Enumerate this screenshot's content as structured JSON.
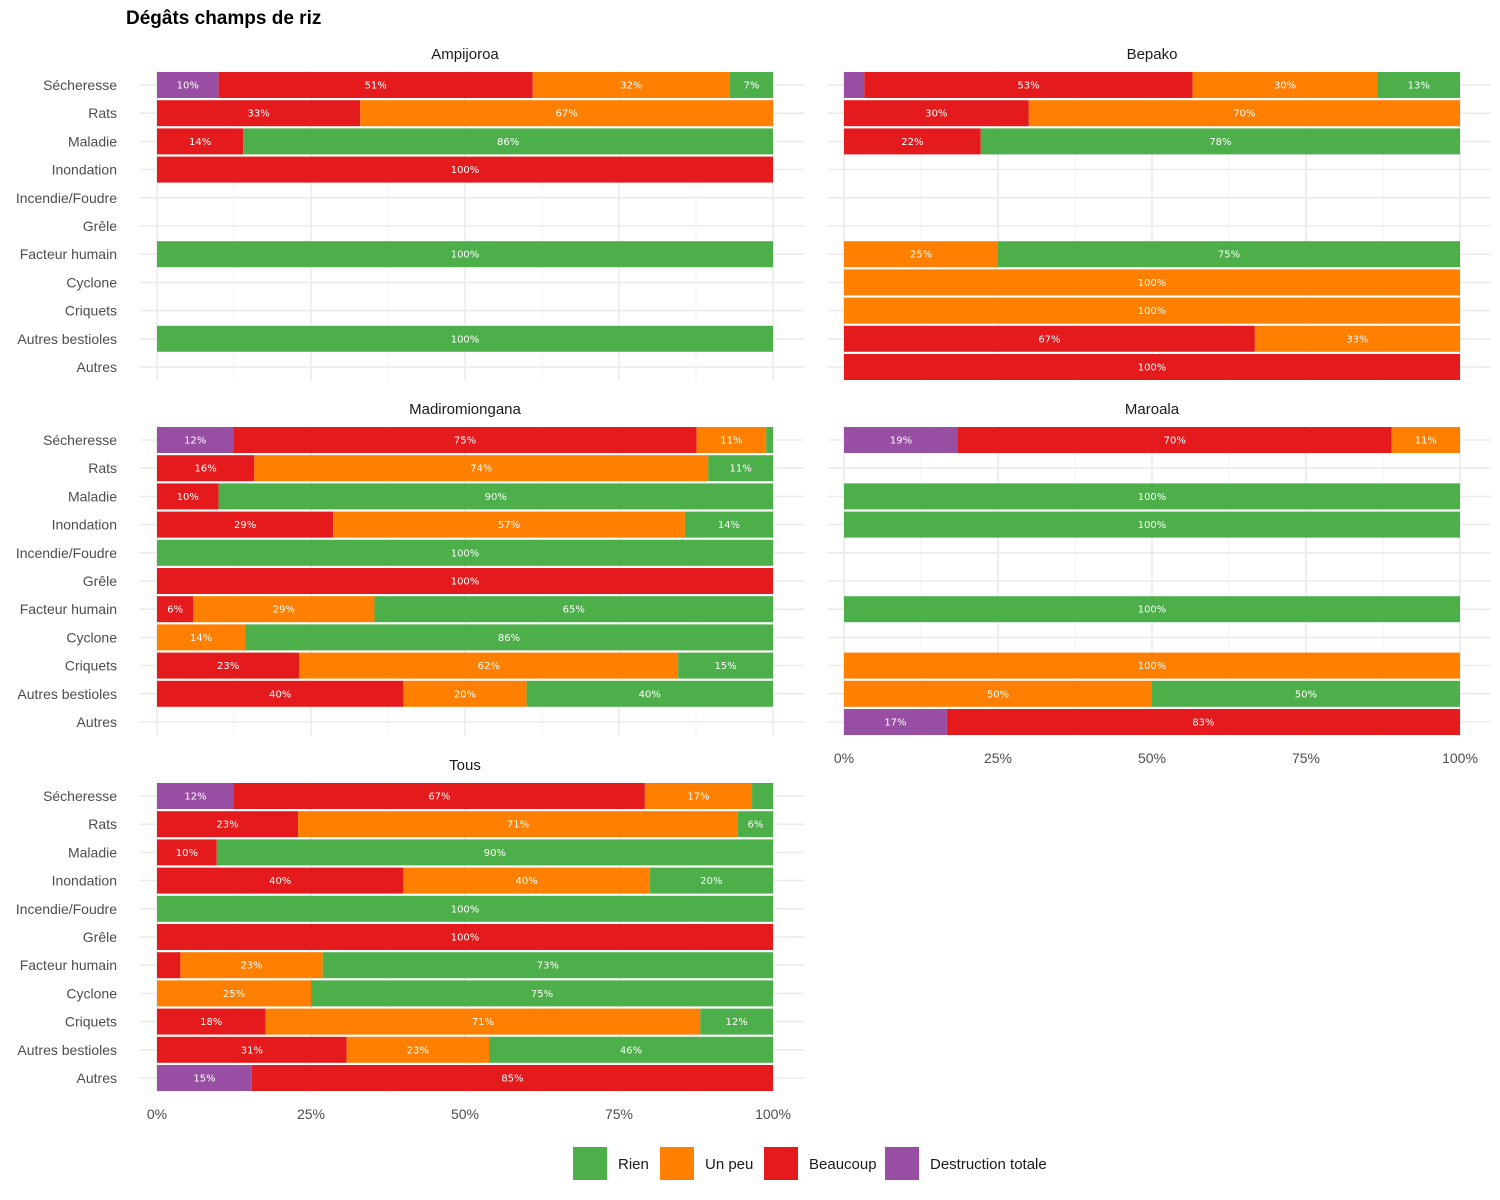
{
  "chart_data": {
    "type": "bar",
    "orientation": "horizontal-stacked-percent",
    "title": "Dégâts champs de riz",
    "xlabel": "",
    "ylabel": "",
    "xlim": [
      0,
      100
    ],
    "x_ticks": [
      "0%",
      "25%",
      "50%",
      "75%",
      "100%"
    ],
    "categories": [
      "Sécheresse",
      "Rats",
      "Maladie",
      "Inondation",
      "Incendie/Foudre",
      "Grêle",
      "Facteur humain",
      "Cyclone",
      "Criquets",
      "Autres bestioles",
      "Autres"
    ],
    "stack_order": [
      "Destruction totale",
      "Beaucoup",
      "Un peu",
      "Rien"
    ],
    "legend": [
      {
        "name": "Rien",
        "color": "#4DAF4A"
      },
      {
        "name": "Un peu",
        "color": "#FF7F00"
      },
      {
        "name": "Beaucoup",
        "color": "#E41A1C"
      },
      {
        "name": "Destruction totale",
        "color": "#984EA3"
      }
    ],
    "legend_position": "bottom",
    "panels": [
      {
        "name": "Ampijoroa",
        "bars": [
          {
            "category": "Sécheresse",
            "values": {
              "Destruction totale": 10,
              "Beaucoup": 51,
              "Un peu": 32,
              "Rien": 7
            },
            "labels": {
              "Destruction totale": "10%",
              "Beaucoup": "51%",
              "Un peu": "32%",
              "Rien": "7%"
            }
          },
          {
            "category": "Rats",
            "values": {
              "Beaucoup": 33,
              "Un peu": 67
            },
            "labels": {
              "Beaucoup": "33%",
              "Un peu": "67%"
            }
          },
          {
            "category": "Maladie",
            "values": {
              "Beaucoup": 14,
              "Rien": 86
            },
            "labels": {
              "Beaucoup": "14%",
              "Rien": "86%"
            }
          },
          {
            "category": "Inondation",
            "values": {
              "Beaucoup": 100
            },
            "labels": {
              "Beaucoup": "100%"
            }
          },
          {
            "category": "Facteur humain",
            "values": {
              "Rien": 100
            },
            "labels": {
              "Rien": "100%"
            }
          },
          {
            "category": "Autres bestioles",
            "values": {
              "Rien": 100
            },
            "labels": {
              "Rien": "100%"
            }
          }
        ]
      },
      {
        "name": "Bepako",
        "bars": [
          {
            "category": "Sécheresse",
            "values": {
              "Destruction totale": 3.3,
              "Beaucoup": 53.3,
              "Un peu": 30,
              "Rien": 13.4
            },
            "labels": {
              "Beaucoup": "53%",
              "Un peu": "30%",
              "Rien": "13%"
            }
          },
          {
            "category": "Rats",
            "values": {
              "Beaucoup": 30,
              "Un peu": 70
            },
            "labels": {
              "Beaucoup": "30%",
              "Un peu": "70%"
            }
          },
          {
            "category": "Maladie",
            "values": {
              "Beaucoup": 22.2,
              "Rien": 77.8
            },
            "labels": {
              "Beaucoup": "22%",
              "Rien": "78%"
            }
          },
          {
            "category": "Facteur humain",
            "values": {
              "Un peu": 25,
              "Rien": 75
            },
            "labels": {
              "Un peu": "25%",
              "Rien": "75%"
            }
          },
          {
            "category": "Cyclone",
            "values": {
              "Un peu": 100
            },
            "labels": {
              "Un peu": "100%"
            }
          },
          {
            "category": "Criquets",
            "values": {
              "Un peu": 100
            },
            "labels": {
              "Un peu": "100%"
            }
          },
          {
            "category": "Autres bestioles",
            "values": {
              "Beaucoup": 66.7,
              "Un peu": 33.3
            },
            "labels": {
              "Beaucoup": "67%",
              "Un peu": "33%"
            }
          },
          {
            "category": "Autres",
            "values": {
              "Beaucoup": 100
            },
            "labels": {
              "Beaucoup": "100%"
            }
          }
        ]
      },
      {
        "name": "Madiromiongana",
        "bars": [
          {
            "category": "Sécheresse",
            "values": {
              "Destruction totale": 12.4,
              "Beaucoup": 75.2,
              "Un peu": 11.3,
              "Rien": 1.1
            },
            "labels": {
              "Destruction totale": "12%",
              "Beaucoup": "75%",
              "Un peu": "11%"
            }
          },
          {
            "category": "Rats",
            "values": {
              "Beaucoup": 15.8,
              "Un peu": 73.7,
              "Rien": 10.5
            },
            "labels": {
              "Beaucoup": "16%",
              "Un peu": "74%",
              "Rien": "11%"
            }
          },
          {
            "category": "Maladie",
            "values": {
              "Beaucoup": 10,
              "Rien": 90
            },
            "labels": {
              "Beaucoup": "10%",
              "Rien": "90%"
            }
          },
          {
            "category": "Inondation",
            "values": {
              "Beaucoup": 28.6,
              "Un peu": 57.1,
              "Rien": 14.3
            },
            "labels": {
              "Beaucoup": "29%",
              "Un peu": "57%",
              "Rien": "14%"
            }
          },
          {
            "category": "Incendie/Foudre",
            "values": {
              "Rien": 100
            },
            "labels": {
              "Rien": "100%"
            }
          },
          {
            "category": "Grêle",
            "values": {
              "Beaucoup": 100
            },
            "labels": {
              "Beaucoup": "100%"
            }
          },
          {
            "category": "Facteur humain",
            "values": {
              "Beaucoup": 5.9,
              "Un peu": 29.4,
              "Rien": 64.7
            },
            "labels": {
              "Beaucoup": "6%",
              "Un peu": "29%",
              "Rien": "65%"
            }
          },
          {
            "category": "Cyclone",
            "values": {
              "Un peu": 14.3,
              "Rien": 85.7
            },
            "labels": {
              "Un peu": "14%",
              "Rien": "86%"
            }
          },
          {
            "category": "Criquets",
            "values": {
              "Beaucoup": 23.1,
              "Un peu": 61.5,
              "Rien": 15.4
            },
            "labels": {
              "Beaucoup": "23%",
              "Un peu": "62%",
              "Rien": "15%"
            }
          },
          {
            "category": "Autres bestioles",
            "values": {
              "Beaucoup": 40,
              "Un peu": 20,
              "Rien": 40
            },
            "labels": {
              "Beaucoup": "40%",
              "Un peu": "20%",
              "Rien": "40%"
            }
          }
        ]
      },
      {
        "name": "Maroala",
        "bars": [
          {
            "category": "Sécheresse",
            "values": {
              "Destruction totale": 18.5,
              "Beaucoup": 70.4,
              "Un peu": 11.1
            },
            "labels": {
              "Destruction totale": "19%",
              "Beaucoup": "70%",
              "Un peu": "11%"
            }
          },
          {
            "category": "Maladie",
            "values": {
              "Rien": 100
            },
            "labels": {
              "Rien": "100%"
            }
          },
          {
            "category": "Inondation",
            "values": {
              "Rien": 100
            },
            "labels": {
              "Rien": "100%"
            }
          },
          {
            "category": "Facteur humain",
            "values": {
              "Rien": 100
            },
            "labels": {
              "Rien": "100%"
            }
          },
          {
            "category": "Criquets",
            "values": {
              "Un peu": 100
            },
            "labels": {
              "Un peu": "100%"
            }
          },
          {
            "category": "Autres bestioles",
            "values": {
              "Un peu": 50,
              "Rien": 50
            },
            "labels": {
              "Un peu": "50%",
              "Rien": "50%"
            }
          },
          {
            "category": "Autres",
            "values": {
              "Destruction totale": 16.7,
              "Beaucoup": 83.3
            },
            "labels": {
              "Destruction totale": "17%",
              "Beaucoup": "83%"
            }
          }
        ]
      },
      {
        "name": "Tous",
        "bars": [
          {
            "category": "Sécheresse",
            "values": {
              "Destruction totale": 12.5,
              "Beaucoup": 66.7,
              "Un peu": 17.4,
              "Rien": 3.4
            },
            "labels": {
              "Destruction totale": "12%",
              "Beaucoup": "67%",
              "Un peu": "17%"
            }
          },
          {
            "category": "Rats",
            "values": {
              "Beaucoup": 22.9,
              "Un peu": 71.4,
              "Rien": 5.7
            },
            "labels": {
              "Beaucoup": "23%",
              "Un peu": "71%",
              "Rien": "6%"
            }
          },
          {
            "category": "Maladie",
            "values": {
              "Beaucoup": 9.7,
              "Rien": 90.3
            },
            "labels": {
              "Beaucoup": "10%",
              "Rien": "90%"
            }
          },
          {
            "category": "Inondation",
            "values": {
              "Beaucoup": 40,
              "Un peu": 40,
              "Rien": 20
            },
            "labels": {
              "Beaucoup": "40%",
              "Un peu": "40%",
              "Rien": "20%"
            }
          },
          {
            "category": "Incendie/Foudre",
            "values": {
              "Rien": 100
            },
            "labels": {
              "Rien": "100%"
            }
          },
          {
            "category": "Grêle",
            "values": {
              "Beaucoup": 100
            },
            "labels": {
              "Beaucoup": "100%"
            }
          },
          {
            "category": "Facteur humain",
            "values": {
              "Beaucoup": 3.8,
              "Un peu": 23.1,
              "Rien": 73.1
            },
            "labels": {
              "Un peu": "23%",
              "Rien": "73%"
            }
          },
          {
            "category": "Cyclone",
            "values": {
              "Un peu": 25,
              "Rien": 75
            },
            "labels": {
              "Un peu": "25%",
              "Rien": "75%"
            }
          },
          {
            "category": "Criquets",
            "values": {
              "Beaucoup": 17.6,
              "Un peu": 70.6,
              "Rien": 11.8
            },
            "labels": {
              "Beaucoup": "18%",
              "Un peu": "71%",
              "Rien": "12%"
            }
          },
          {
            "category": "Autres bestioles",
            "values": {
              "Beaucoup": 30.8,
              "Un peu": 23.1,
              "Rien": 46.1
            },
            "labels": {
              "Beaucoup": "31%",
              "Un peu": "23%",
              "Rien": "46%"
            }
          },
          {
            "category": "Autres",
            "values": {
              "Destruction totale": 15.4,
              "Beaucoup": 84.6
            },
            "labels": {
              "Destruction totale": "15%",
              "Beaucoup": "85%"
            }
          }
        ]
      }
    ]
  }
}
